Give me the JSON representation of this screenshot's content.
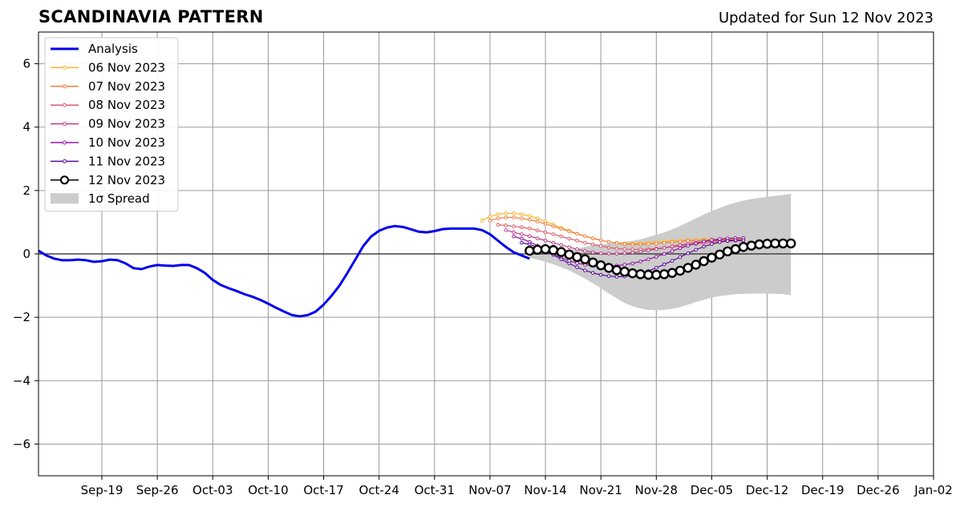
{
  "header": {
    "title": "SCANDINAVIA PATTERN",
    "updated": "Updated for Sun 12 Nov 2023"
  },
  "chart_data": {
    "type": "line",
    "title": "SCANDINAVIA PATTERN",
    "x_start": "2023-09-11",
    "x_end": "2024-01-02",
    "ylim": [
      -7,
      7
    ],
    "grid": true,
    "legend_position": "upper-left",
    "x_tick_labels": [
      "Sep-19",
      "Sep-26",
      "Oct-03",
      "Oct-10",
      "Oct-17",
      "Oct-24",
      "Oct-31",
      "Nov-07",
      "Nov-14",
      "Nov-21",
      "Nov-28",
      "Dec-05",
      "Dec-12",
      "Dec-19",
      "Dec-26",
      "Jan-02"
    ],
    "x_tick_dates": [
      "2023-09-19",
      "2023-09-26",
      "2023-10-03",
      "2023-10-10",
      "2023-10-17",
      "2023-10-24",
      "2023-10-31",
      "2023-11-07",
      "2023-11-14",
      "2023-11-21",
      "2023-11-28",
      "2023-12-05",
      "2023-12-12",
      "2023-12-19",
      "2023-12-26",
      "2024-01-02"
    ],
    "y_ticks": [
      -6,
      -4,
      -2,
      0,
      2,
      4,
      6
    ],
    "y_tick_labels": [
      "−6",
      "−4",
      "−2",
      "0",
      "2",
      "4",
      "6"
    ],
    "analysis": {
      "name": "Analysis",
      "color": "#0000ee",
      "x": [
        "2023-09-11",
        "2023-09-12",
        "2023-09-13",
        "2023-09-14",
        "2023-09-15",
        "2023-09-16",
        "2023-09-17",
        "2023-09-18",
        "2023-09-19",
        "2023-09-20",
        "2023-09-21",
        "2023-09-22",
        "2023-09-23",
        "2023-09-24",
        "2023-09-25",
        "2023-09-26",
        "2023-09-27",
        "2023-09-28",
        "2023-09-29",
        "2023-09-30",
        "2023-10-01",
        "2023-10-02",
        "2023-10-03",
        "2023-10-04",
        "2023-10-05",
        "2023-10-06",
        "2023-10-07",
        "2023-10-08",
        "2023-10-09",
        "2023-10-10",
        "2023-10-11",
        "2023-10-12",
        "2023-10-13",
        "2023-10-14",
        "2023-10-15",
        "2023-10-16",
        "2023-10-17",
        "2023-10-18",
        "2023-10-19",
        "2023-10-20",
        "2023-10-21",
        "2023-10-22",
        "2023-10-23",
        "2023-10-24",
        "2023-10-25",
        "2023-10-26",
        "2023-10-27",
        "2023-10-28",
        "2023-10-29",
        "2023-10-30",
        "2023-10-31",
        "2023-11-01",
        "2023-11-02",
        "2023-11-03",
        "2023-11-04",
        "2023-11-05",
        "2023-11-06",
        "2023-11-07",
        "2023-11-08",
        "2023-11-09",
        "2023-11-10",
        "2023-11-11",
        "2023-11-12"
      ],
      "values": [
        0.1,
        -0.05,
        -0.15,
        -0.2,
        -0.2,
        -0.18,
        -0.2,
        -0.25,
        -0.23,
        -0.18,
        -0.2,
        -0.3,
        -0.45,
        -0.48,
        -0.4,
        -0.35,
        -0.37,
        -0.38,
        -0.35,
        -0.35,
        -0.45,
        -0.6,
        -0.82,
        -0.98,
        -1.08,
        -1.17,
        -1.27,
        -1.35,
        -1.45,
        -1.57,
        -1.7,
        -1.82,
        -1.93,
        -1.97,
        -1.93,
        -1.82,
        -1.6,
        -1.32,
        -1.0,
        -0.6,
        -0.18,
        0.25,
        0.55,
        0.73,
        0.83,
        0.88,
        0.85,
        0.78,
        0.7,
        0.68,
        0.72,
        0.78,
        0.8,
        0.8,
        0.8,
        0.8,
        0.75,
        0.62,
        0.42,
        0.22,
        0.05,
        -0.05,
        -0.15
      ]
    },
    "forecasts": [
      {
        "name": "06 Nov 2023",
        "color": "#f9b42c",
        "start": "2023-11-06",
        "values": [
          1.05,
          1.18,
          1.25,
          1.28,
          1.28,
          1.25,
          1.2,
          1.12,
          1.02,
          0.93,
          0.82,
          0.73,
          0.64,
          0.56,
          0.49,
          0.43,
          0.38,
          0.35,
          0.33,
          0.33,
          0.34,
          0.35,
          0.37,
          0.39,
          0.41,
          0.43,
          0.44,
          0.45,
          0.46,
          0.46,
          0.46,
          0.46,
          0.47,
          0.47
        ]
      },
      {
        "name": "07 Nov 2023",
        "color": "#f07f3e",
        "start": "2023-11-07",
        "values": [
          1.05,
          1.12,
          1.15,
          1.15,
          1.12,
          1.08,
          1.02,
          0.95,
          0.87,
          0.79,
          0.71,
          0.63,
          0.56,
          0.49,
          0.43,
          0.38,
          0.34,
          0.31,
          0.3,
          0.3,
          0.31,
          0.33,
          0.35,
          0.37,
          0.39,
          0.41,
          0.42,
          0.43,
          0.44,
          0.44,
          0.45,
          0.45,
          0.45
        ]
      },
      {
        "name": "08 Nov 2023",
        "color": "#de5c6a",
        "start": "2023-11-08",
        "values": [
          0.92,
          0.9,
          0.87,
          0.84,
          0.8,
          0.74,
          0.68,
          0.62,
          0.55,
          0.48,
          0.42,
          0.35,
          0.3,
          0.25,
          0.2,
          0.17,
          0.15,
          0.14,
          0.14,
          0.15,
          0.17,
          0.19,
          0.22,
          0.25,
          0.28,
          0.31,
          0.34,
          0.37,
          0.39,
          0.4,
          0.41,
          0.41
        ]
      },
      {
        "name": "09 Nov 2023",
        "color": "#bf3d8a",
        "start": "2023-11-09",
        "values": [
          0.75,
          0.68,
          0.62,
          0.56,
          0.49,
          0.42,
          0.35,
          0.28,
          0.21,
          0.15,
          0.09,
          0.05,
          0.02,
          0.01,
          0.01,
          0.02,
          0.04,
          0.07,
          0.11,
          0.15,
          0.19,
          0.24,
          0.28,
          0.32,
          0.36,
          0.39,
          0.41,
          0.43,
          0.44,
          0.44,
          0.44
        ]
      },
      {
        "name": "10 Nov 2023",
        "color": "#9218a3",
        "start": "2023-11-10",
        "values": [
          0.55,
          0.48,
          0.38,
          0.26,
          0.13,
          0.0,
          -0.12,
          -0.22,
          -0.29,
          -0.34,
          -0.37,
          -0.38,
          -0.38,
          -0.37,
          -0.34,
          -0.3,
          -0.24,
          -0.17,
          -0.09,
          0.0,
          0.09,
          0.18,
          0.26,
          0.33,
          0.39,
          0.44,
          0.47,
          0.49,
          0.5,
          0.5
        ]
      },
      {
        "name": "11 Nov 2023",
        "color": "#5c0c9c",
        "start": "2023-11-11",
        "values": [
          0.35,
          0.3,
          0.21,
          0.1,
          -0.03,
          -0.17,
          -0.3,
          -0.42,
          -0.52,
          -0.6,
          -0.66,
          -0.7,
          -0.72,
          -0.71,
          -0.68,
          -0.62,
          -0.54,
          -0.44,
          -0.33,
          -0.22,
          -0.1,
          0.02,
          0.13,
          0.23,
          0.31,
          0.37,
          0.41,
          0.43,
          0.43
        ]
      },
      {
        "name": "12 Nov 2023",
        "color": "#000000",
        "start": "2023-11-12",
        "values": [
          0.1,
          0.13,
          0.15,
          0.12,
          0.06,
          -0.02,
          -0.1,
          -0.17,
          -0.27,
          -0.36,
          -0.44,
          -0.51,
          -0.56,
          -0.61,
          -0.64,
          -0.66,
          -0.66,
          -0.64,
          -0.6,
          -0.53,
          -0.44,
          -0.34,
          -0.23,
          -0.12,
          -0.02,
          0.08,
          0.15,
          0.22,
          0.26,
          0.3,
          0.32,
          0.33,
          0.33,
          0.33
        ]
      }
    ],
    "spread": {
      "name": "1σ Spread",
      "color": "#cccccc",
      "start": "2023-11-12",
      "upper": [
        0.05,
        0.05,
        0.06,
        0.08,
        0.1,
        0.13,
        0.17,
        0.22,
        0.27,
        0.3,
        0.33,
        0.36,
        0.38,
        0.41,
        0.46,
        0.53,
        0.6,
        0.68,
        0.77,
        0.88,
        1.0,
        1.12,
        1.24,
        1.35,
        1.45,
        1.54,
        1.62,
        1.68,
        1.73,
        1.77,
        1.8,
        1.83,
        1.86,
        1.9
      ],
      "lower": [
        -0.12,
        -0.18,
        -0.25,
        -0.33,
        -0.42,
        -0.52,
        -0.65,
        -0.78,
        -0.93,
        -1.08,
        -1.25,
        -1.4,
        -1.55,
        -1.65,
        -1.72,
        -1.77,
        -1.78,
        -1.77,
        -1.73,
        -1.68,
        -1.6,
        -1.52,
        -1.45,
        -1.38,
        -1.33,
        -1.3,
        -1.27,
        -1.26,
        -1.25,
        -1.25,
        -1.25,
        -1.26,
        -1.27,
        -1.3
      ]
    }
  }
}
